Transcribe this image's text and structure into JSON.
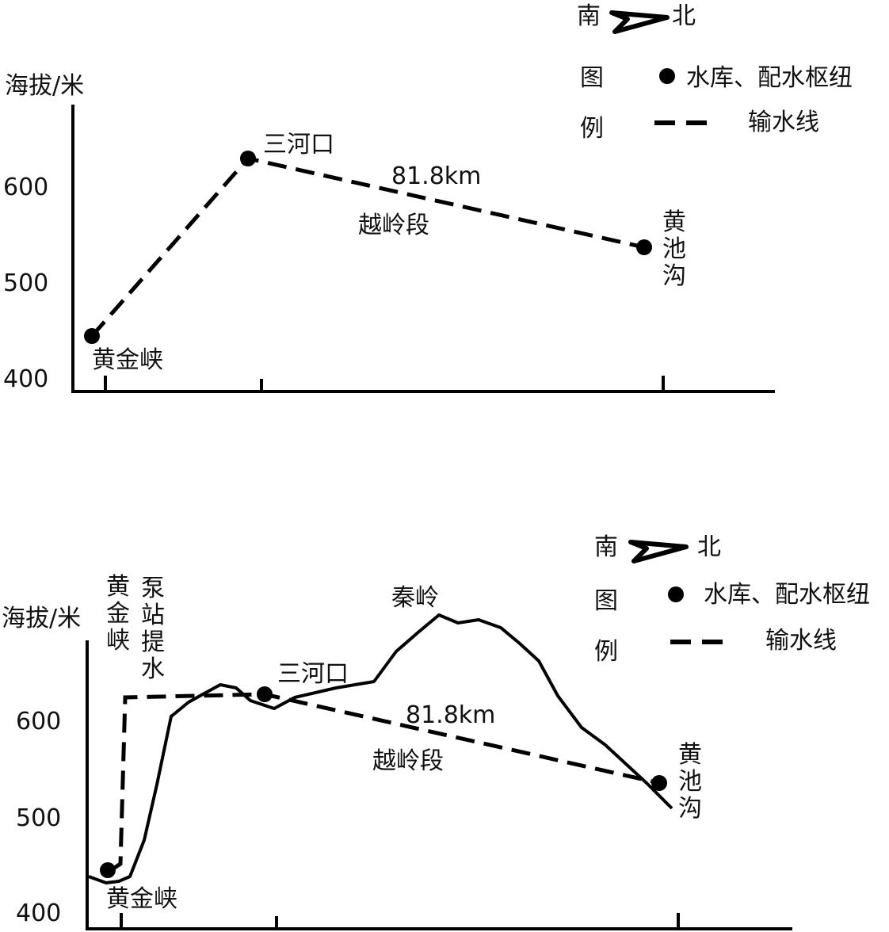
{
  "panel_top": {
    "compass": {
      "south": "南",
      "north": "北"
    },
    "legend": {
      "title_1": "图",
      "title_2": "例",
      "reservoir": "水库、配水枢纽",
      "pipeline": "输水线"
    },
    "y_axis_label": "海拔/米",
    "y_ticks": [
      "600",
      "500",
      "400"
    ],
    "stations": {
      "huangjinxia": "黄金峡",
      "sanhekou": "三河口",
      "huangchigou": [
        "黄",
        "池",
        "沟"
      ]
    },
    "distance": "81.8km",
    "segment": "越岭段"
  },
  "panel_bottom": {
    "compass": {
      "south": "南",
      "north": "北"
    },
    "legend": {
      "title_1": "图",
      "title_2": "例",
      "reservoir": "水库、配水枢纽",
      "pipeline": "输水线"
    },
    "y_axis_label": "海拔/米",
    "y_ticks": [
      "600",
      "500",
      "400"
    ],
    "stations": {
      "huangjinxia": "黄金峡",
      "sanhekou": "三河口",
      "huangchigou": [
        "黄",
        "池",
        "沟"
      ]
    },
    "vertical_station": [
      "黄",
      "金",
      "峡"
    ],
    "pump": [
      "泵",
      "站",
      "提",
      "水"
    ],
    "mountain": "秦岭",
    "distance": "81.8km",
    "segment": "越岭段"
  }
}
